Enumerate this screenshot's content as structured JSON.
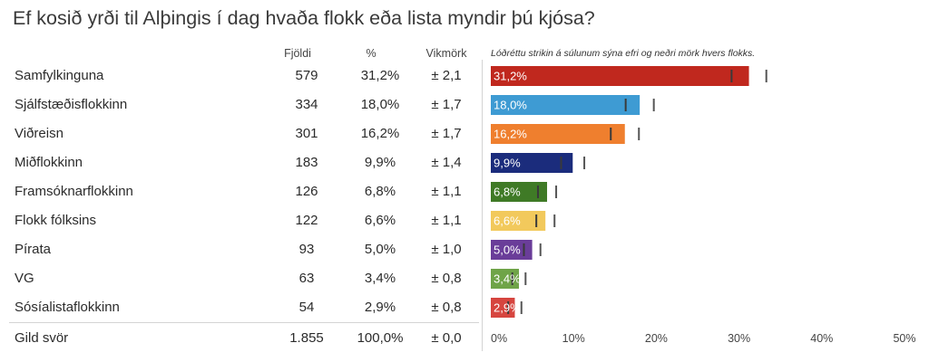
{
  "title": "Ef kosið yrði til Alþingis í dag hvaða flokk eða lista myndir þú kjósa?",
  "columns": {
    "count": "Fjöldi",
    "percent": "%",
    "moe": "Vikmörk"
  },
  "note": "Lóðréttu strikin á súlunum sýna efri og neðri mörk hvers flokks.",
  "rows": [
    {
      "name": "Samfylkinguna",
      "count": "579",
      "percent": "31,2%",
      "moe": "± 2,1"
    },
    {
      "name": "Sjálfstæðisflokkinn",
      "count": "334",
      "percent": "18,0%",
      "moe": "± 1,7"
    },
    {
      "name": "Viðreisn",
      "count": "301",
      "percent": "16,2%",
      "moe": "± 1,7"
    },
    {
      "name": "Miðflokkinn",
      "count": "183",
      "percent": "9,9%",
      "moe": "± 1,4"
    },
    {
      "name": "Framsóknarflokkinn",
      "count": "126",
      "percent": "6,8%",
      "moe": "± 1,1"
    },
    {
      "name": "Flokk fólksins",
      "count": "122",
      "percent": "6,6%",
      "moe": "± 1,1"
    },
    {
      "name": "Pírata",
      "count": "93",
      "percent": "5,0%",
      "moe": "± 1,0"
    },
    {
      "name": "VG",
      "count": "63",
      "percent": "3,4%",
      "moe": "± 0,8"
    },
    {
      "name": "Sósíalistaflokkinn",
      "count": "54",
      "percent": "2,9%",
      "moe": "± 0,8"
    }
  ],
  "total": {
    "name": "Gild svör",
    "count": "1.855",
    "percent": "100,0%",
    "moe": "± 0,0"
  },
  "chart_data": {
    "type": "bar",
    "orientation": "horizontal",
    "categories": [
      "Samfylkinguna",
      "Sjálfstæðisflokkinn",
      "Viðreisn",
      "Miðflokkinn",
      "Framsóknarflokkinn",
      "Flokk fólksins",
      "Pírata",
      "VG",
      "Sósíalistaflokkinn"
    ],
    "values": [
      31.2,
      18.0,
      16.2,
      9.9,
      6.8,
      6.6,
      5.0,
      3.4,
      2.9
    ],
    "value_labels": [
      "31,2%",
      "18,0%",
      "16,2%",
      "9,9%",
      "6,8%",
      "6,6%",
      "5,0%",
      "3,4%",
      "2,9%"
    ],
    "error_margins": [
      2.1,
      1.7,
      1.7,
      1.4,
      1.1,
      1.1,
      1.0,
      0.8,
      0.8
    ],
    "colors": [
      "#c0281e",
      "#3e9bd3",
      "#ef7f2e",
      "#1b2c7c",
      "#3f7a26",
      "#f2c95c",
      "#6a3d99",
      "#6fa448",
      "#d6453f"
    ],
    "label_colors": [
      "#ffffff",
      "#ffffff",
      "#ffffff",
      "#ffffff",
      "#ffffff",
      "#ffffff",
      "#ffffff",
      "#ffffff",
      "#ffffff"
    ],
    "xticks": [
      0,
      10,
      20,
      30,
      40,
      50
    ],
    "xtick_labels": [
      "0%",
      "10%",
      "20%",
      "30%",
      "40%",
      "50%"
    ],
    "xlim": [
      0,
      50
    ],
    "grid": false
  }
}
